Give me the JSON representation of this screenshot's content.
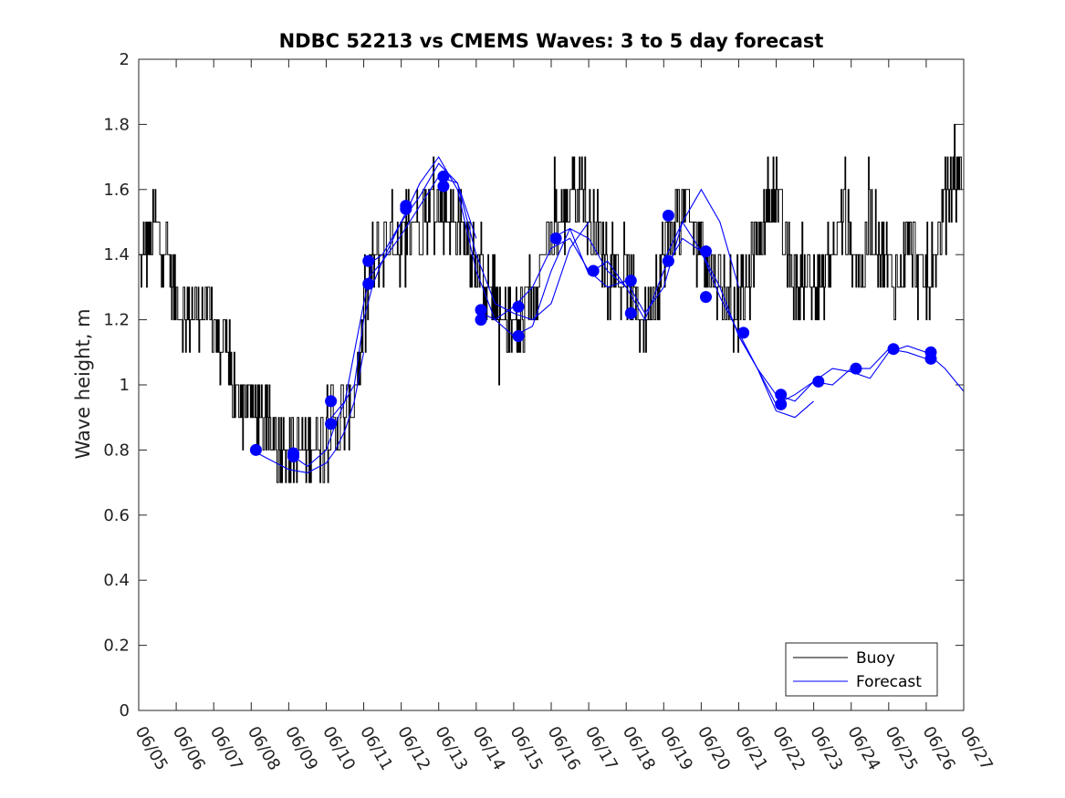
{
  "chart_data": {
    "type": "line",
    "title": "NDBC 52213 vs CMEMS Waves: 3 to 5 day forecast",
    "xlabel": "",
    "ylabel": "Wave height, m",
    "xlim": [
      "06/05",
      "06/27"
    ],
    "ylim": [
      0,
      2
    ],
    "x_ticks": [
      "06/05",
      "06/06",
      "06/07",
      "06/08",
      "06/09",
      "06/10",
      "06/11",
      "06/12",
      "06/13",
      "06/14",
      "06/15",
      "06/16",
      "06/17",
      "06/18",
      "06/19",
      "06/20",
      "06/21",
      "06/22",
      "06/23",
      "06/24",
      "06/25",
      "06/26",
      "06/27"
    ],
    "y_ticks": [
      0,
      0.2,
      0.4,
      0.6,
      0.8,
      1,
      1.2,
      1.4,
      1.6,
      1.8,
      2
    ],
    "y_tick_labels": [
      "0",
      "0.2",
      "0.4",
      "0.6",
      "0.8",
      "1",
      "1.2",
      "1.4",
      "1.6",
      "1.8",
      "2"
    ],
    "grid": false,
    "legend_position": "bottom-right",
    "colors": {
      "buoy": "#000000",
      "forecast": "#0000ff"
    },
    "series": [
      {
        "name": "Buoy",
        "style": "thin black line, fluctuates about the trend in 0.1 m steps",
        "x": [
          "06/05 00:00",
          "06/05 06:00",
          "06/05 12:00",
          "06/05 18:00",
          "06/06 00:00",
          "06/06 06:00",
          "06/06 12:00",
          "06/06 18:00",
          "06/07 00:00",
          "06/07 06:00",
          "06/07 12:00",
          "06/07 18:00",
          "06/08 00:00",
          "06/08 06:00",
          "06/08 12:00",
          "06/08 18:00",
          "06/09 00:00",
          "06/09 06:00",
          "06/09 12:00",
          "06/09 18:00",
          "06/10 00:00",
          "06/10 06:00",
          "06/10 12:00",
          "06/10 18:00",
          "06/11 00:00",
          "06/11 06:00",
          "06/11 12:00",
          "06/11 18:00",
          "06/12 00:00",
          "06/12 06:00",
          "06/12 12:00",
          "06/12 18:00",
          "06/13 00:00",
          "06/13 06:00",
          "06/13 12:00",
          "06/13 18:00",
          "06/14 00:00",
          "06/14 06:00",
          "06/14 12:00",
          "06/14 18:00",
          "06/15 00:00",
          "06/15 06:00",
          "06/15 12:00",
          "06/15 18:00",
          "06/16 00:00",
          "06/16 06:00",
          "06/16 12:00",
          "06/16 18:00",
          "06/17 00:00",
          "06/17 06:00",
          "06/17 12:00",
          "06/17 18:00",
          "06/18 00:00",
          "06/18 06:00",
          "06/18 12:00",
          "06/18 18:00",
          "06/19 00:00",
          "06/19 06:00",
          "06/19 12:00",
          "06/19 18:00",
          "06/20 00:00",
          "06/20 06:00",
          "06/20 12:00",
          "06/20 18:00",
          "06/21 00:00",
          "06/21 06:00",
          "06/21 12:00",
          "06/21 18:00",
          "06/22 00:00",
          "06/22 06:00",
          "06/22 12:00",
          "06/22 18:00",
          "06/23 00:00",
          "06/23 06:00",
          "06/23 12:00",
          "06/23 18:00",
          "06/24 00:00",
          "06/24 06:00",
          "06/24 12:00",
          "06/24 18:00",
          "06/25 00:00",
          "06/25 06:00",
          "06/25 12:00",
          "06/25 18:00",
          "06/26 00:00",
          "06/26 06:00",
          "06/26 12:00",
          "06/26 18:00"
        ],
        "y": [
          1.35,
          1.45,
          1.5,
          1.4,
          1.25,
          1.22,
          1.22,
          1.25,
          1.2,
          1.1,
          1.0,
          0.95,
          0.95,
          0.88,
          0.85,
          0.82,
          0.82,
          0.8,
          0.8,
          0.85,
          0.85,
          0.88,
          0.9,
          0.95,
          1.2,
          1.38,
          1.42,
          1.45,
          1.45,
          1.5,
          1.52,
          1.55,
          1.55,
          1.52,
          1.5,
          1.45,
          1.4,
          1.32,
          1.25,
          1.18,
          1.15,
          1.2,
          1.3,
          1.4,
          1.45,
          1.5,
          1.6,
          1.65,
          1.5,
          1.45,
          1.38,
          1.35,
          1.3,
          1.25,
          1.2,
          1.3,
          1.4,
          1.5,
          1.55,
          1.5,
          1.45,
          1.35,
          1.3,
          1.25,
          1.25,
          1.3,
          1.45,
          1.55,
          1.6,
          1.4,
          1.3,
          1.35,
          1.28,
          1.32,
          1.4,
          1.5,
          1.45,
          1.35,
          1.5,
          1.42,
          1.35,
          1.3,
          1.45,
          1.35,
          1.3,
          1.4,
          1.55,
          1.65
        ]
      },
      {
        "name": "Forecast",
        "style": "thin blue lines (several overlapping forecast runs)",
        "runs": [
          {
            "x": [
              "06/08 00:00",
              "06/08 12:00",
              "06/09 00:00",
              "06/09 12:00",
              "06/10 00:00",
              "06/10 06:00",
              "06/10 12:00",
              "06/10 18:00",
              "06/11 00:00"
            ],
            "y": [
              0.8,
              0.77,
              0.74,
              0.73,
              0.76,
              0.8,
              0.86,
              0.95,
              1.1
            ]
          },
          {
            "x": [
              "06/09 00:00",
              "06/09 12:00",
              "06/10 00:00",
              "06/10 06:00",
              "06/10 12:00",
              "06/10 18:00",
              "06/11 00:00",
              "06/11 06:00",
              "06/11 12:00",
              "06/11 18:00",
              "06/12 00:00",
              "06/12 12:00",
              "06/13 00:00",
              "06/13 12:00",
              "06/14 00:00"
            ],
            "y": [
              0.79,
              0.75,
              0.8,
              0.88,
              0.95,
              1.0,
              1.2,
              1.31,
              1.38,
              1.42,
              1.46,
              1.55,
              1.64,
              1.62,
              1.45
            ]
          },
          {
            "x": [
              "06/10 00:00",
              "06/10 12:00",
              "06/11 00:00",
              "06/11 06:00",
              "06/11 12:00",
              "06/11 18:00",
              "06/12 00:00",
              "06/12 12:00",
              "06/13 00:00",
              "06/13 12:00",
              "06/14 00:00",
              "06/14 12:00",
              "06/15 00:00",
              "06/15 12:00",
              "06/16 00:00",
              "06/16 12:00",
              "06/17 00:00"
            ],
            "y": [
              0.88,
              0.95,
              1.25,
              1.38,
              1.4,
              1.45,
              1.5,
              1.58,
              1.68,
              1.62,
              1.4,
              1.25,
              1.22,
              1.2,
              1.25,
              1.42,
              1.5
            ]
          },
          {
            "x": [
              "06/11 00:00",
              "06/11 12:00",
              "06/12 00:00",
              "06/12 12:00",
              "06/13 00:00",
              "06/13 12:00",
              "06/14 00:00",
              "06/14 12:00",
              "06/15 00:00",
              "06/15 12:00",
              "06/16 00:00",
              "06/16 12:00",
              "06/17 00:00",
              "06/17 12:00",
              "06/18 00:00"
            ],
            "y": [
              1.31,
              1.38,
              1.5,
              1.62,
              1.7,
              1.6,
              1.35,
              1.2,
              1.15,
              1.18,
              1.35,
              1.48,
              1.45,
              1.35,
              1.3
            ]
          },
          {
            "x": [
              "06/14 00:00",
              "06/14 12:00",
              "06/15 00:00",
              "06/15 12:00",
              "06/16 00:00",
              "06/16 12:00",
              "06/17 00:00",
              "06/17 12:00",
              "06/18 00:00",
              "06/18 12:00",
              "06/19 00:00",
              "06/19 12:00",
              "06/20 00:00",
              "06/20 12:00",
              "06/21 00:00"
            ],
            "y": [
              1.23,
              1.2,
              1.24,
              1.3,
              1.42,
              1.45,
              1.35,
              1.3,
              1.32,
              1.22,
              1.3,
              1.5,
              1.6,
              1.5,
              1.3
            ]
          },
          {
            "x": [
              "06/16 00:00",
              "06/16 12:00",
              "06/17 00:00",
              "06/17 12:00",
              "06/18 00:00",
              "06/18 12:00",
              "06/19 00:00",
              "06/19 12:00",
              "06/20 00:00",
              "06/20 12:00",
              "06/21 00:00",
              "06/21 12:00",
              "06/22 00:00",
              "06/22 12:00",
              "06/23 00:00"
            ],
            "y": [
              1.45,
              1.48,
              1.34,
              1.38,
              1.3,
              1.2,
              1.35,
              1.45,
              1.41,
              1.3,
              1.15,
              1.05,
              0.92,
              0.9,
              0.95
            ]
          },
          {
            "x": [
              "06/19 00:00",
              "06/19 12:00",
              "06/20 00:00",
              "06/20 12:00",
              "06/21 00:00",
              "06/21 12:00",
              "06/22 00:00",
              "06/22 12:00",
              "06/23 00:00",
              "06/23 12:00",
              "06/24 00:00",
              "06/24 12:00",
              "06/25 00:00",
              "06/25 12:00",
              "06/26 00:00"
            ],
            "y": [
              1.38,
              1.5,
              1.41,
              1.27,
              1.16,
              1.05,
              0.94,
              0.97,
              1.01,
              1.0,
              1.05,
              1.05,
              1.11,
              1.1,
              1.08
            ]
          },
          {
            "x": [
              "06/21 00:00",
              "06/21 12:00",
              "06/22 00:00",
              "06/22 12:00",
              "06/23 00:00",
              "06/23 12:00",
              "06/24 00:00",
              "06/24 12:00",
              "06/25 00:00",
              "06/25 12:00",
              "06/26 00:00",
              "06/26 12:00",
              "06/27 00:00"
            ],
            "y": [
              1.15,
              1.05,
              0.97,
              0.95,
              1.01,
              1.05,
              1.04,
              1.02,
              1.1,
              1.12,
              1.1,
              1.05,
              0.98
            ]
          }
        ],
        "markers": {
          "x": [
            "06/08 03:00",
            "06/09 03:00",
            "06/09 03:00",
            "06/10 03:00",
            "06/10 03:00",
            "06/11 03:00",
            "06/11 03:00",
            "06/12 03:00",
            "06/12 03:00",
            "06/13 03:00",
            "06/13 03:00",
            "06/14 03:00",
            "06/14 03:00",
            "06/15 03:00",
            "06/15 03:00",
            "06/16 03:00",
            "06/17 03:00",
            "06/18 03:00",
            "06/18 03:00",
            "06/19 03:00",
            "06/19 03:00",
            "06/20 03:00",
            "06/20 03:00",
            "06/21 03:00",
            "06/22 03:00",
            "06/22 03:00",
            "06/23 03:00",
            "06/24 03:00",
            "06/25 03:00",
            "06/26 03:00",
            "06/26 03:00"
          ],
          "y": [
            0.8,
            0.79,
            0.78,
            0.95,
            0.88,
            1.38,
            1.31,
            1.55,
            1.54,
            1.64,
            1.61,
            1.23,
            1.2,
            1.24,
            1.15,
            1.45,
            1.35,
            1.32,
            1.22,
            1.52,
            1.38,
            1.41,
            1.27,
            1.16,
            0.97,
            0.94,
            1.01,
            1.05,
            1.11,
            1.1,
            1.08
          ]
        }
      }
    ]
  }
}
